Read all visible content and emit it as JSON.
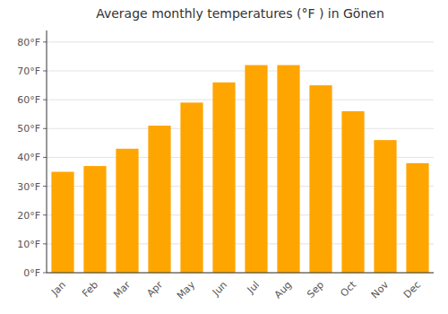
{
  "chart_data": {
    "type": "bar",
    "title": "Average monthly temperatures (°F ) in Gönen",
    "categories": [
      "Jan",
      "Feb",
      "Mar",
      "Apr",
      "May",
      "Jun",
      "Jul",
      "Aug",
      "Sep",
      "Oct",
      "Nov",
      "Dec"
    ],
    "values": [
      35,
      37,
      43,
      51,
      59,
      66,
      72,
      72,
      65,
      56,
      46,
      38
    ],
    "color": "#FFA500",
    "ylim": [
      0,
      84
    ],
    "yticks": [
      {
        "value": 0,
        "label": "0°F"
      },
      {
        "value": 10,
        "label": "10°F"
      },
      {
        "value": 20,
        "label": "20°F"
      },
      {
        "value": 30,
        "label": "30°F"
      },
      {
        "value": 40,
        "label": "40°F"
      },
      {
        "value": 50,
        "label": "50°F"
      },
      {
        "value": 60,
        "label": "60°F"
      },
      {
        "value": 70,
        "label": "70°F"
      },
      {
        "value": 80,
        "label": "80°F"
      }
    ],
    "grid": true
  }
}
